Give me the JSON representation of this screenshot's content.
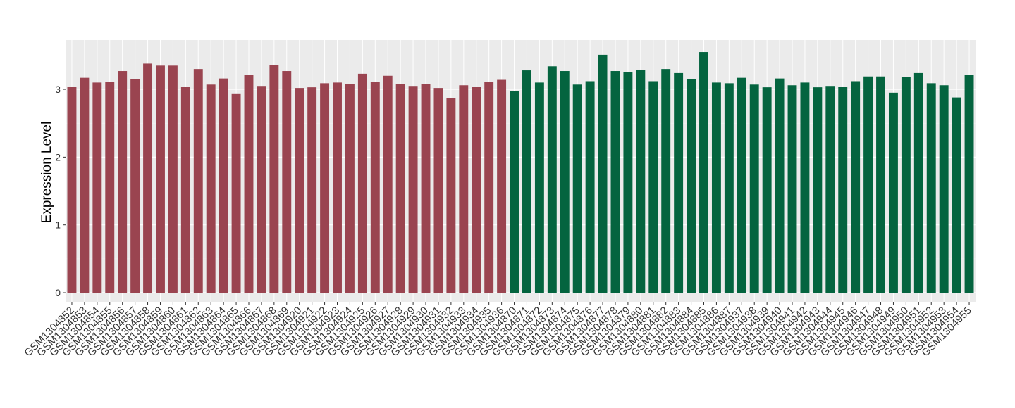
{
  "chart_data": {
    "type": "bar",
    "y_label": "Expression Level",
    "categories": [
      "GSM1304852",
      "GSM1304853",
      "GSM1304854",
      "GSM1304855",
      "GSM1304856",
      "GSM1304857",
      "GSM1304858",
      "GSM1304859",
      "GSM1304860",
      "GSM1304861",
      "GSM1304862",
      "GSM1304863",
      "GSM1304864",
      "GSM1304865",
      "GSM1304866",
      "GSM1304867",
      "GSM1304868",
      "GSM1304869",
      "GSM1304920",
      "GSM1304921",
      "GSM1304922",
      "GSM1304923",
      "GSM1304924",
      "GSM1304925",
      "GSM1304926",
      "GSM1304927",
      "GSM1304928",
      "GSM1304929",
      "GSM1304930",
      "GSM1304931",
      "GSM1304932",
      "GSM1304933",
      "GSM1304934",
      "GSM1304935",
      "GSM1304936",
      "GSM1304870",
      "GSM1304871",
      "GSM1304872",
      "GSM1304873",
      "GSM1304874",
      "GSM1304875",
      "GSM1304876",
      "GSM1304877",
      "GSM1304878",
      "GSM1304879",
      "GSM1304880",
      "GSM1304881",
      "GSM1304882",
      "GSM1304883",
      "GSM1304884",
      "GSM1304885",
      "GSM1304886",
      "GSM1304887",
      "GSM1304937",
      "GSM1304938",
      "GSM1304939",
      "GSM1304940",
      "GSM1304941",
      "GSM1304942",
      "GSM1304943",
      "GSM1304944",
      "GSM1304945",
      "GSM1304946",
      "GSM1304947",
      "GSM1304948",
      "GSM1304949",
      "GSM1304950",
      "GSM1304951",
      "GSM1304952",
      "GSM1304953",
      "GSM1304954",
      "GSM1304955"
    ],
    "series": [
      {
        "color": "#9a4450",
        "values": [
          3.04,
          3.17,
          3.1,
          3.11,
          3.27,
          3.15,
          3.38,
          3.35,
          3.35,
          3.04,
          3.3,
          3.07,
          3.16,
          2.94,
          3.21,
          3.05,
          3.36,
          3.27,
          3.02,
          3.03,
          3.09,
          3.1,
          3.08,
          3.23,
          3.11,
          3.2,
          3.08,
          3.05,
          3.08,
          3.02,
          2.87,
          3.06,
          3.04,
          3.11,
          3.14,
          null,
          null,
          null,
          null,
          null,
          null,
          null,
          null,
          null,
          null,
          null,
          null,
          null,
          null,
          null,
          null,
          null,
          null,
          null,
          null,
          null,
          null,
          null,
          null,
          null,
          null,
          null,
          null,
          null,
          null,
          null,
          null,
          null,
          null,
          null,
          null,
          null
        ]
      },
      {
        "color": "#04643f",
        "values": [
          null,
          null,
          null,
          null,
          null,
          null,
          null,
          null,
          null,
          null,
          null,
          null,
          null,
          null,
          null,
          null,
          null,
          null,
          null,
          null,
          null,
          null,
          null,
          null,
          null,
          null,
          null,
          null,
          null,
          null,
          null,
          null,
          null,
          null,
          null,
          2.97,
          3.28,
          3.1,
          3.34,
          3.27,
          3.07,
          3.12,
          3.51,
          3.27,
          3.25,
          3.29,
          3.12,
          3.3,
          3.24,
          3.15,
          3.55,
          3.1,
          3.09,
          3.17,
          3.07,
          3.03,
          3.16,
          3.06,
          3.1,
          3.03,
          3.05,
          3.04,
          3.12,
          3.19,
          3.19,
          2.95,
          3.18,
          3.24,
          3.09,
          3.06,
          2.88,
          3.21
        ]
      }
    ],
    "ylim": [
      -0.145,
      3.727
    ],
    "yticks": [
      0,
      1,
      2,
      3
    ],
    "grid": true
  }
}
